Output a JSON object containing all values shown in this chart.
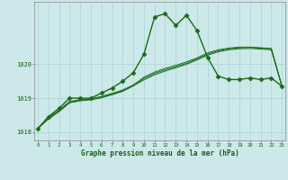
{
  "x": [
    0,
    1,
    2,
    3,
    4,
    5,
    6,
    7,
    8,
    9,
    10,
    11,
    12,
    13,
    14,
    15,
    16,
    17,
    18,
    19,
    20,
    21,
    22,
    23
  ],
  "line_main": [
    1018.1,
    1018.45,
    1018.7,
    1019.0,
    1019.0,
    1019.0,
    1019.15,
    1019.3,
    1019.5,
    1019.75,
    1020.3,
    1021.4,
    1021.5,
    1021.15,
    1021.45,
    1021.0,
    1020.2,
    1019.65,
    1019.55,
    1019.55,
    1019.6,
    1019.55,
    1019.6,
    1019.35
  ],
  "line_s1": [
    1018.1,
    1018.4,
    1018.62,
    1018.88,
    1018.94,
    1018.97,
    1019.03,
    1019.12,
    1019.22,
    1019.38,
    1019.62,
    1019.77,
    1019.88,
    1019.97,
    1020.07,
    1020.19,
    1020.34,
    1020.43,
    1020.48,
    1020.51,
    1020.51,
    1020.49,
    1020.47,
    1019.35
  ],
  "line_s2": [
    1018.1,
    1018.42,
    1018.65,
    1018.9,
    1018.96,
    1018.98,
    1019.05,
    1019.14,
    1019.24,
    1019.39,
    1019.58,
    1019.73,
    1019.84,
    1019.93,
    1020.03,
    1020.16,
    1020.3,
    1020.4,
    1020.46,
    1020.49,
    1020.5,
    1020.48,
    1020.46,
    1019.35
  ],
  "line_s3": [
    1018.1,
    1018.38,
    1018.6,
    1018.86,
    1018.92,
    1018.95,
    1019.01,
    1019.1,
    1019.2,
    1019.36,
    1019.54,
    1019.69,
    1019.8,
    1019.9,
    1020.0,
    1020.13,
    1020.27,
    1020.37,
    1020.43,
    1020.46,
    1020.47,
    1020.45,
    1020.43,
    1019.35
  ],
  "bg_color": "#cce8e8",
  "line_color_main": "#1a6b1a",
  "line_color_smooth": "#1a6b1a",
  "grid_color": "#aad4d4",
  "ylabel_ticks": [
    1018,
    1019,
    1020
  ],
  "xlabel_ticks": [
    0,
    1,
    2,
    3,
    4,
    5,
    6,
    7,
    8,
    9,
    10,
    11,
    12,
    13,
    14,
    15,
    16,
    17,
    18,
    19,
    20,
    21,
    22,
    23
  ],
  "xlabel": "Graphe pression niveau de la mer (hPa)",
  "ylim": [
    1017.75,
    1021.85
  ],
  "xlim": [
    -0.3,
    23.3
  ],
  "title_color": "#1a5c1a",
  "marker": "D",
  "markersize": 2.5,
  "linewidth_main": 1.0,
  "linewidth_smooth": 0.7
}
